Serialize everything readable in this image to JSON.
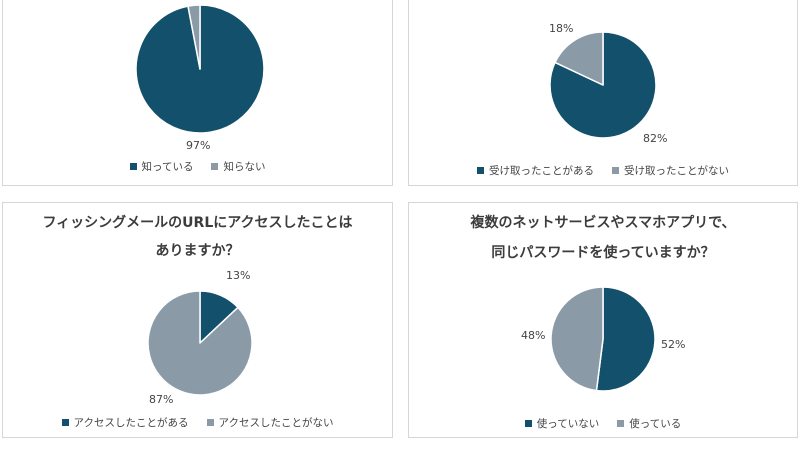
{
  "colors": {
    "dark": "#12506c",
    "light": "#8a9ba7"
  },
  "chart_data": [
    {
      "type": "pie",
      "title_lines": [],
      "categories": [
        "知っている",
        "知らない"
      ],
      "values": [
        97,
        3
      ],
      "labels": [
        "97%",
        ""
      ],
      "colors": [
        "#12506c",
        "#8a9ba7"
      ],
      "legend": "bottom"
    },
    {
      "type": "pie",
      "title_lines": [],
      "categories": [
        "受け取ったことがある",
        "受け取ったことがない"
      ],
      "values": [
        82,
        18
      ],
      "labels": [
        "82%",
        "18%"
      ],
      "colors": [
        "#12506c",
        "#8a9ba7"
      ],
      "legend": "bottom"
    },
    {
      "type": "pie",
      "title_lines": [
        "フィッシングメールのURLにアクセスしたことは",
        "ありますか？"
      ],
      "categories": [
        "アクセスしたことがある",
        "アクセスしたことがない"
      ],
      "values": [
        13,
        87
      ],
      "labels": [
        "13%",
        "87%"
      ],
      "colors": [
        "#12506c",
        "#8a9ba7"
      ],
      "legend": "bottom"
    },
    {
      "type": "pie",
      "title_lines": [
        "複数のネットサービスやスマホアプリで、",
        "同じパスワードを使っていますか？"
      ],
      "categories": [
        "使っていない",
        "使っている"
      ],
      "values": [
        52,
        48
      ],
      "labels": [
        "52%",
        "48%"
      ],
      "colors": [
        "#12506c",
        "#8a9ba7"
      ],
      "legend": "bottom"
    }
  ]
}
